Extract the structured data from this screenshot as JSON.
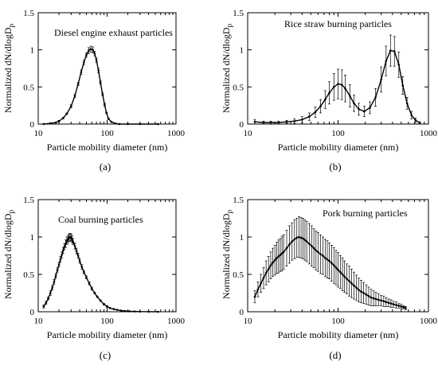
{
  "chart_data": [
    {
      "type": "line",
      "panel_label": "(a)",
      "annotation": "Diesel engine exhaust particles",
      "xlabel": "Particle mobility diameter (nm)",
      "ylabel_main": "Normalized dN/dlogD",
      "ylabel_sub": "p",
      "xscale": "log",
      "xlim": [
        10,
        1000
      ],
      "ylim": [
        0,
        1.5
      ],
      "xticks": [
        10,
        100,
        1000
      ],
      "yticks": [
        0,
        0.5,
        1,
        1.5
      ],
      "xtick_labels": [
        "10",
        "100",
        "1000"
      ],
      "ytick_labels": [
        "0",
        "0.5",
        "1",
        "1.5"
      ],
      "series": [
        {
          "x": [
            12,
            15,
            18,
            20,
            23,
            26,
            30,
            34,
            38,
            42,
            46,
            50,
            54,
            58,
            62,
            66,
            70,
            75,
            80,
            86,
            92,
            98,
            105,
            115,
            130,
            150,
            200,
            300,
            550
          ],
          "y": [
            0.0,
            0.01,
            0.02,
            0.04,
            0.08,
            0.14,
            0.24,
            0.38,
            0.54,
            0.7,
            0.83,
            0.93,
            0.99,
            1.01,
            1.0,
            0.95,
            0.86,
            0.72,
            0.56,
            0.4,
            0.26,
            0.15,
            0.07,
            0.03,
            0.01,
            0.0,
            0.0,
            0.0,
            0.0
          ],
          "err": [
            0.0,
            0.0,
            0.0,
            0.01,
            0.01,
            0.01,
            0.02,
            0.02,
            0.02,
            0.03,
            0.03,
            0.03,
            0.04,
            0.04,
            0.04,
            0.03,
            0.03,
            0.03,
            0.02,
            0.02,
            0.02,
            0.01,
            0.01,
            0.0,
            0.0,
            0.0,
            0.0,
            0.0,
            0.0
          ]
        }
      ]
    },
    {
      "type": "line",
      "panel_label": "(b)",
      "annotation": "Rice straw burning particles",
      "xlabel": "Particle mobility diameter (nm)",
      "ylabel_main": "Normalized dN/dlogD",
      "ylabel_sub": "p",
      "xscale": "log",
      "xlim": [
        10,
        1000
      ],
      "ylim": [
        0,
        1.5
      ],
      "xticks": [
        10,
        100,
        1000
      ],
      "yticks": [
        0,
        0.5,
        1,
        1.5
      ],
      "xtick_labels": [
        "10",
        "100",
        "1000"
      ],
      "ytick_labels": [
        "0",
        "0.5",
        "1",
        "1.5"
      ],
      "series": [
        {
          "x": [
            12,
            15,
            18,
            22,
            27,
            33,
            40,
            48,
            56,
            64,
            72,
            80,
            90,
            100,
            110,
            120,
            135,
            150,
            170,
            195,
            225,
            260,
            300,
            340,
            380,
            420,
            470,
            520,
            580,
            650,
            720,
            800
          ],
          "y": [
            0.03,
            0.02,
            0.02,
            0.02,
            0.03,
            0.04,
            0.06,
            0.1,
            0.16,
            0.24,
            0.33,
            0.42,
            0.5,
            0.54,
            0.53,
            0.48,
            0.38,
            0.28,
            0.2,
            0.17,
            0.22,
            0.36,
            0.6,
            0.85,
            0.99,
            0.98,
            0.8,
            0.52,
            0.28,
            0.12,
            0.05,
            0.02
          ],
          "err": [
            0.03,
            0.02,
            0.02,
            0.02,
            0.02,
            0.03,
            0.04,
            0.05,
            0.07,
            0.09,
            0.12,
            0.15,
            0.18,
            0.2,
            0.2,
            0.18,
            0.15,
            0.11,
            0.08,
            0.07,
            0.08,
            0.12,
            0.17,
            0.2,
            0.21,
            0.2,
            0.17,
            0.12,
            0.08,
            0.05,
            0.03,
            0.01
          ]
        }
      ]
    },
    {
      "type": "line",
      "panel_label": "(c)",
      "annotation": "Coal burning particles",
      "xlabel": "Particle mobility diameter (nm)",
      "ylabel_main": "Normalized dN/dlogD",
      "ylabel_sub": "p",
      "xscale": "log",
      "xlim": [
        10,
        1000
      ],
      "ylim": [
        0,
        1.5
      ],
      "xticks": [
        10,
        100,
        1000
      ],
      "yticks": [
        0,
        0.5,
        1,
        1.5
      ],
      "xtick_labels": [
        "10",
        "100",
        "1000"
      ],
      "ytick_labels": [
        "0",
        "0.5",
        "1",
        "1.5"
      ],
      "series": [
        {
          "x": [
            12,
            13,
            14,
            15,
            16,
            17,
            18,
            19,
            20,
            21,
            22,
            23,
            24,
            25,
            26,
            27,
            28,
            29,
            30,
            31,
            32,
            34,
            36,
            38,
            40,
            43,
            46,
            50,
            55,
            60,
            66,
            72,
            80,
            90,
            100,
            110,
            125,
            140,
            160,
            180,
            210,
            250,
            300,
            400,
            550
          ],
          "y": [
            0.07,
            0.12,
            0.18,
            0.25,
            0.32,
            0.4,
            0.48,
            0.56,
            0.63,
            0.7,
            0.76,
            0.82,
            0.87,
            0.91,
            0.95,
            0.97,
            0.99,
            1.0,
            0.99,
            0.97,
            0.94,
            0.88,
            0.81,
            0.75,
            0.68,
            0.6,
            0.53,
            0.46,
            0.38,
            0.31,
            0.25,
            0.2,
            0.15,
            0.1,
            0.07,
            0.05,
            0.035,
            0.025,
            0.015,
            0.01,
            0.006,
            0.004,
            0.002,
            0.001,
            0.0
          ],
          "err": [
            0.02,
            0.02,
            0.02,
            0.03,
            0.03,
            0.03,
            0.03,
            0.03,
            0.03,
            0.04,
            0.04,
            0.04,
            0.04,
            0.05,
            0.05,
            0.05,
            0.05,
            0.05,
            0.05,
            0.05,
            0.04,
            0.04,
            0.04,
            0.03,
            0.03,
            0.03,
            0.02,
            0.02,
            0.02,
            0.02,
            0.01,
            0.01,
            0.01,
            0.01,
            0.01,
            0.0,
            0.0,
            0.0,
            0.0,
            0.0,
            0.0,
            0.0,
            0.0,
            0.0,
            0.0
          ]
        }
      ]
    },
    {
      "type": "line",
      "panel_label": "(d)",
      "annotation": "Pork burning particles",
      "xlabel": "Particle mobility diameter (nm)",
      "ylabel_main": "Normalized dN/dlogD",
      "ylabel_sub": "p",
      "xscale": "log",
      "xlim": [
        10,
        1000
      ],
      "ylim": [
        0,
        1.5
      ],
      "xticks": [
        10,
        100,
        1000
      ],
      "yticks": [
        0,
        0.5,
        1,
        1.5
      ],
      "xtick_labels": [
        "10",
        "100",
        "1000"
      ],
      "ytick_labels": [
        "0",
        "0.5",
        "1",
        "1.5"
      ],
      "series": [
        {
          "x": [
            12,
            13,
            14,
            15,
            16,
            17,
            18,
            19,
            20,
            21,
            22,
            23,
            24,
            25,
            27,
            29,
            31,
            33,
            35,
            37,
            39,
            41,
            43,
            45,
            48,
            51,
            54,
            57,
            60,
            64,
            68,
            72,
            76,
            80,
            85,
            90,
            95,
            100,
            106,
            112,
            118,
            125,
            133,
            141,
            150,
            160,
            170,
            180,
            192,
            205,
            218,
            232,
            247,
            262,
            280,
            300,
            320,
            340,
            362,
            385,
            410,
            440,
            470,
            500,
            530,
            560
          ],
          "y": [
            0.2,
            0.3,
            0.38,
            0.45,
            0.52,
            0.57,
            0.62,
            0.66,
            0.69,
            0.72,
            0.74,
            0.76,
            0.78,
            0.8,
            0.85,
            0.9,
            0.94,
            0.97,
            0.99,
            1.0,
            0.99,
            0.98,
            0.96,
            0.94,
            0.91,
            0.88,
            0.85,
            0.82,
            0.8,
            0.77,
            0.75,
            0.72,
            0.7,
            0.68,
            0.65,
            0.62,
            0.59,
            0.56,
            0.53,
            0.5,
            0.47,
            0.44,
            0.41,
            0.38,
            0.35,
            0.32,
            0.29,
            0.27,
            0.25,
            0.23,
            0.21,
            0.19,
            0.18,
            0.17,
            0.16,
            0.15,
            0.14,
            0.13,
            0.12,
            0.11,
            0.1,
            0.09,
            0.08,
            0.07,
            0.06,
            0.05
          ],
          "err": [
            0.08,
            0.1,
            0.12,
            0.14,
            0.16,
            0.17,
            0.18,
            0.19,
            0.2,
            0.21,
            0.22,
            0.22,
            0.23,
            0.23,
            0.24,
            0.25,
            0.25,
            0.26,
            0.26,
            0.27,
            0.27,
            0.27,
            0.27,
            0.27,
            0.27,
            0.27,
            0.26,
            0.26,
            0.26,
            0.26,
            0.25,
            0.25,
            0.25,
            0.24,
            0.24,
            0.24,
            0.23,
            0.23,
            0.22,
            0.22,
            0.21,
            0.2,
            0.2,
            0.19,
            0.18,
            0.17,
            0.16,
            0.15,
            0.14,
            0.13,
            0.12,
            0.11,
            0.1,
            0.09,
            0.08,
            0.07,
            0.07,
            0.06,
            0.05,
            0.05,
            0.04,
            0.04,
            0.03,
            0.03,
            0.02,
            0.02
          ]
        }
      ]
    }
  ]
}
